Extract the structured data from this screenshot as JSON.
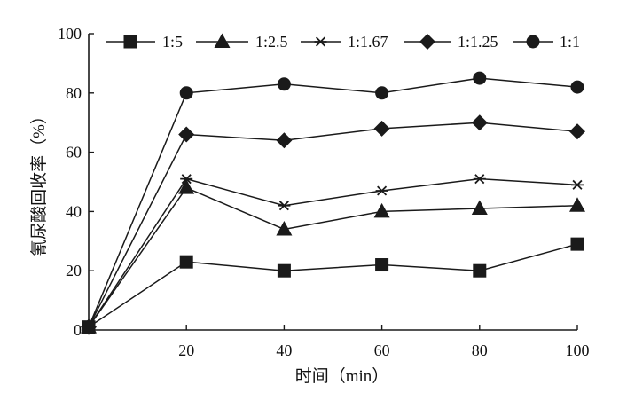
{
  "chart_data": {
    "type": "line",
    "title": "",
    "xlabel": "时间（min）",
    "ylabel": "氰尿酸回收率（%）",
    "x": [
      0,
      20,
      40,
      60,
      80,
      100
    ],
    "xticks": [
      "20",
      "40",
      "60",
      "80",
      "100"
    ],
    "yticks": [
      "0",
      "20",
      "40",
      "60",
      "80",
      "100"
    ],
    "xlim": [
      0,
      100
    ],
    "ylim": [
      0,
      100
    ],
    "grid": false,
    "legend_position": "top",
    "series": [
      {
        "name": "1:5",
        "marker": "square",
        "values": [
          1,
          23,
          20,
          22,
          20,
          29
        ]
      },
      {
        "name": "1:2.5",
        "marker": "triangle",
        "values": [
          1,
          48,
          34,
          40,
          41,
          42
        ]
      },
      {
        "name": "1:1.67",
        "marker": "star",
        "values": [
          1,
          51,
          42,
          47,
          51,
          49
        ]
      },
      {
        "name": "1:1.25",
        "marker": "diamond",
        "values": [
          1,
          66,
          64,
          68,
          70,
          67
        ]
      },
      {
        "name": "1:1",
        "marker": "circle",
        "values": [
          1,
          80,
          83,
          80,
          85,
          82
        ]
      }
    ],
    "line_color": "#1a1a1a"
  }
}
